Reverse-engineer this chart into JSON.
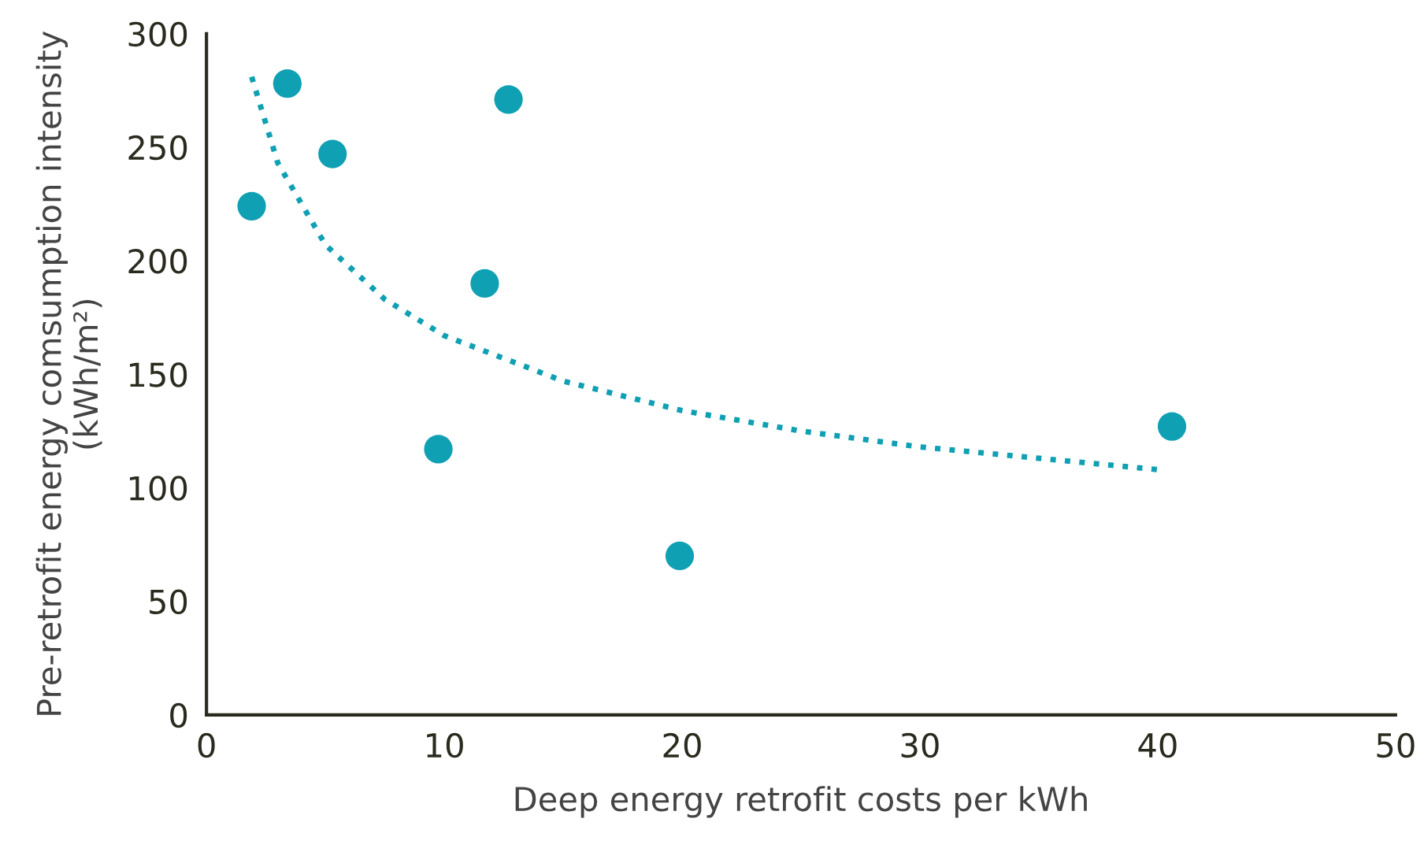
{
  "chart_data": {
    "type": "scatter",
    "xlabel": "Deep energy retrofit costs per kWh",
    "ylabel": "Pre-retrofit energy comsumption intensity\n(kWh/m²)",
    "series": [
      {
        "color": "#0fa0b4",
        "marker": "circle",
        "x": [
          1.9,
          3.4,
          5.3,
          9.75,
          11.7,
          12.7,
          19.9,
          40.6
        ],
        "values": [
          224,
          278,
          247,
          117,
          190,
          271,
          70,
          127
        ]
      },
      {
        "type": "line",
        "color": "#0fa0b4",
        "line_style": "dotted",
        "marker": "none",
        "x": [
          1.9,
          3,
          5,
          7.5,
          10,
          15,
          20,
          25,
          30,
          35,
          40
        ],
        "values": [
          281,
          243,
          207,
          183,
          167,
          147,
          134,
          125,
          118,
          113,
          108
        ]
      }
    ],
    "xlim": [
      0,
      50
    ],
    "xticks": [
      0,
      10,
      20,
      30,
      40,
      50
    ],
    "ylim": [
      0,
      300
    ],
    "yticks": [
      0,
      50,
      100,
      150,
      200,
      250,
      300
    ],
    "grid": false
  }
}
